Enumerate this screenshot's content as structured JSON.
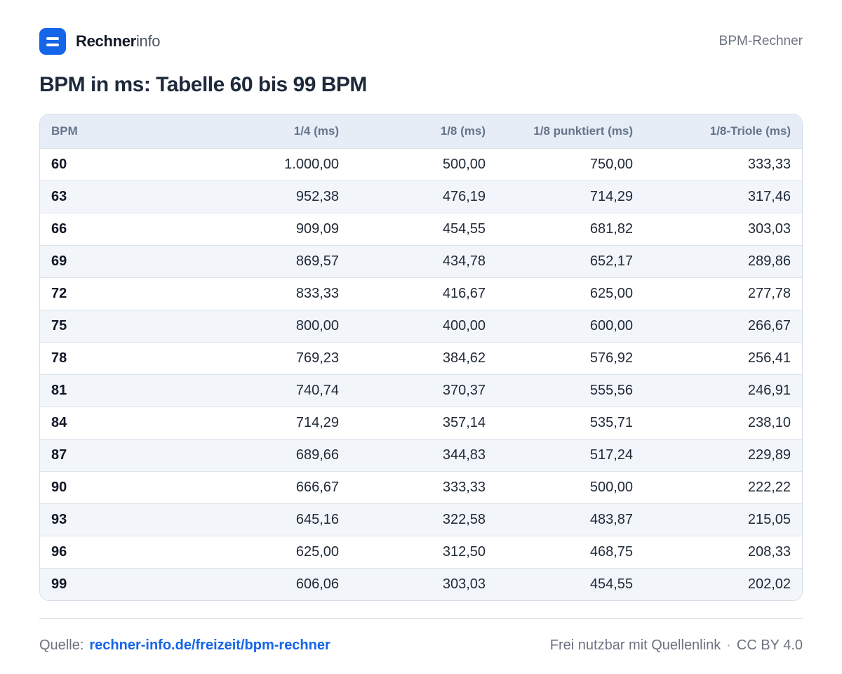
{
  "header": {
    "brand_bold": "Rechner",
    "brand_light": "info",
    "right_label": "BPM-Rechner"
  },
  "title": "BPM in ms: Tabelle 60 bis 99 BPM",
  "table": {
    "columns": [
      "BPM",
      "1/4 (ms)",
      "1/8 (ms)",
      "1/8 punktiert (ms)",
      "1/8-Triole (ms)"
    ],
    "rows": [
      [
        "60",
        "1.000,00",
        "500,00",
        "750,00",
        "333,33"
      ],
      [
        "63",
        "952,38",
        "476,19",
        "714,29",
        "317,46"
      ],
      [
        "66",
        "909,09",
        "454,55",
        "681,82",
        "303,03"
      ],
      [
        "69",
        "869,57",
        "434,78",
        "652,17",
        "289,86"
      ],
      [
        "72",
        "833,33",
        "416,67",
        "625,00",
        "277,78"
      ],
      [
        "75",
        "800,00",
        "400,00",
        "600,00",
        "266,67"
      ],
      [
        "78",
        "769,23",
        "384,62",
        "576,92",
        "256,41"
      ],
      [
        "81",
        "740,74",
        "370,37",
        "555,56",
        "246,91"
      ],
      [
        "84",
        "714,29",
        "357,14",
        "535,71",
        "238,10"
      ],
      [
        "87",
        "689,66",
        "344,83",
        "517,24",
        "229,89"
      ],
      [
        "90",
        "666,67",
        "333,33",
        "500,00",
        "222,22"
      ],
      [
        "93",
        "645,16",
        "322,58",
        "483,87",
        "215,05"
      ],
      [
        "96",
        "625,00",
        "312,50",
        "468,75",
        "208,33"
      ],
      [
        "99",
        "606,06",
        "303,03",
        "454,55",
        "202,02"
      ]
    ]
  },
  "footer": {
    "source_label": "Quelle:",
    "source_link": "rechner-info.de/freizeit/bpm-rechner",
    "license_note": "Frei nutzbar mit Quellenlink",
    "separator": "·",
    "license": "CC BY 4.0"
  },
  "colors": {
    "accent": "#1565e8",
    "header_bg": "#e6edf6",
    "zebra_bg": "#f2f6fb"
  }
}
